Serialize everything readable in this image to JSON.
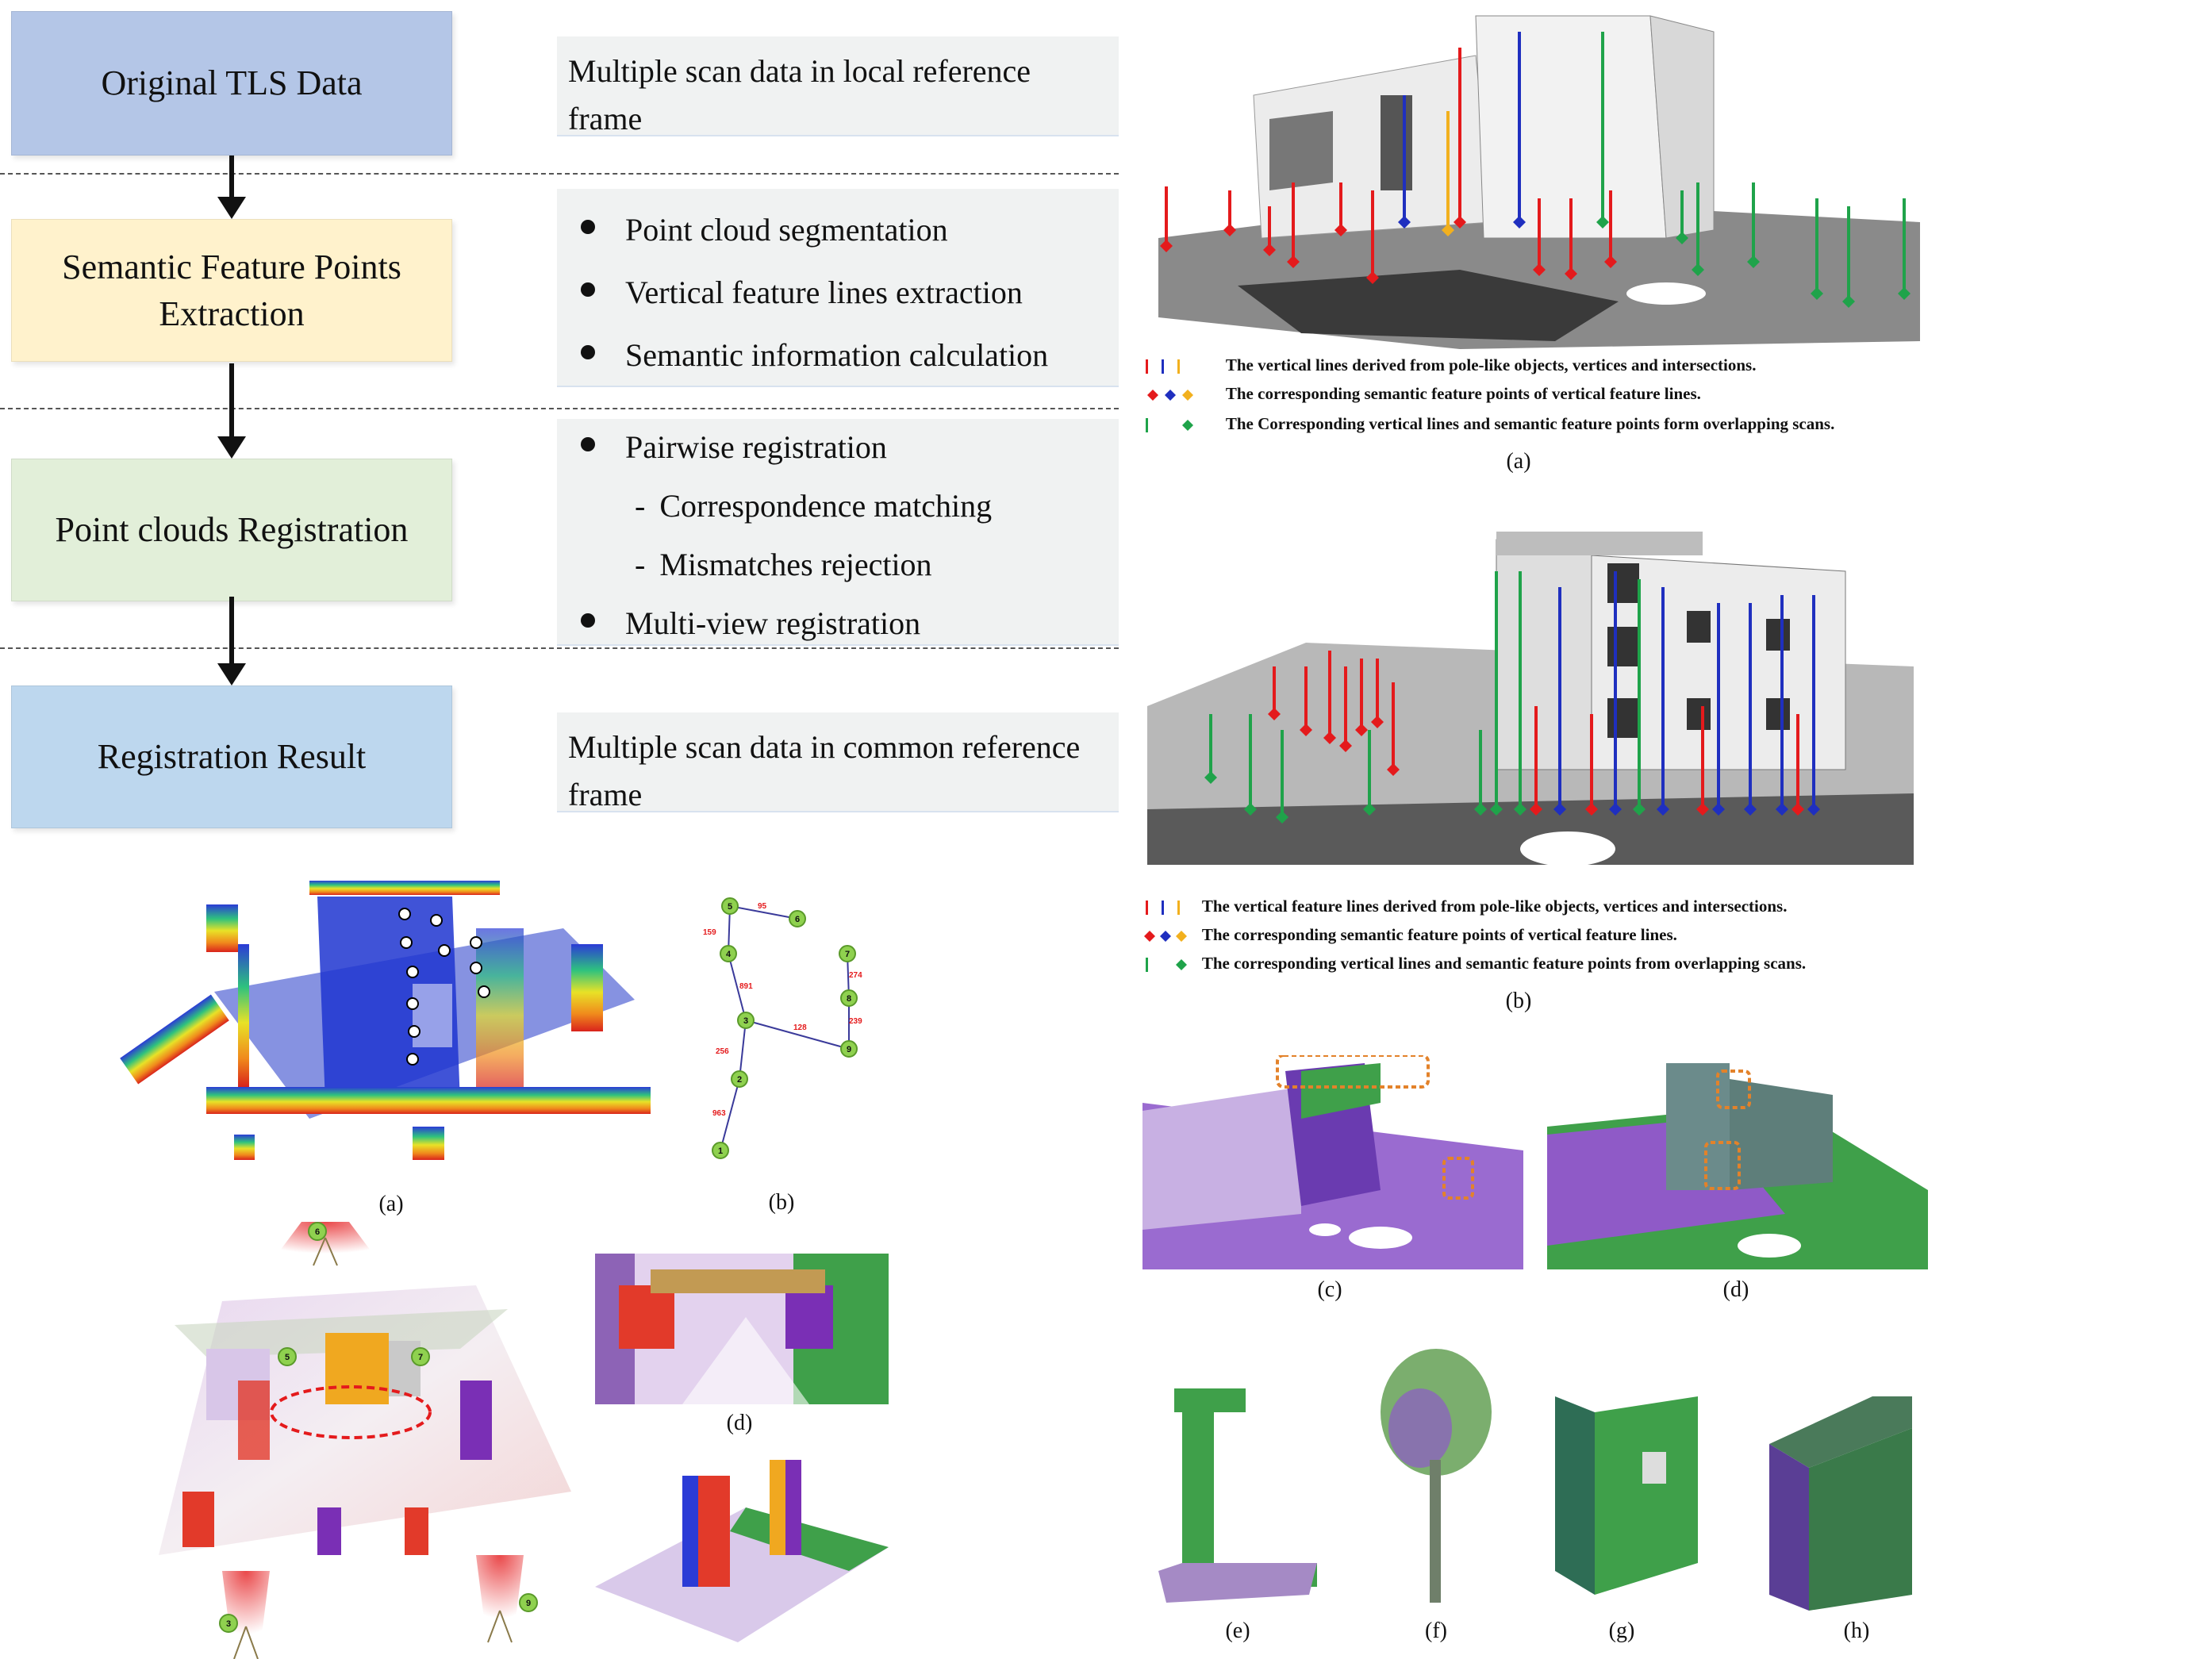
{
  "flowchart": {
    "stages": [
      "Original TLS Data",
      "Semantic Feature Points Extraction",
      "Point clouds Registration",
      "Registration Result"
    ],
    "desc1": "Multiple scan data in local reference frame",
    "desc2": [
      "Point cloud segmentation",
      "Vertical feature lines extraction",
      "Semantic information calculation"
    ],
    "desc3": {
      "b1": "Pairwise registration",
      "s1": "Correspondence matching",
      "s2": "Mismatches rejection",
      "b2": "Multi-view registration"
    },
    "desc4": "Multiple scan data in common reference frame",
    "sub_dash": "-"
  },
  "left_figure": {
    "captions": {
      "a": "(a)",
      "b": "(b)",
      "d": "(d)"
    },
    "graph_nodes": [
      "1",
      "2",
      "3",
      "4",
      "5",
      "6",
      "7",
      "8",
      "9"
    ],
    "graph_edge_labels": [
      "95",
      "159",
      "891",
      "274",
      "239",
      "128",
      "256",
      "963"
    ],
    "scanner_labels": [
      "6",
      "5",
      "7",
      "3",
      "9"
    ]
  },
  "right_figure": {
    "legend_a": [
      "The  vertical lines derived from pole-like objects, vertices and intersections.",
      "The corresponding semantic feature points of vertical feature lines.",
      "The Corresponding vertical lines and semantic feature points form overlapping scans."
    ],
    "legend_b": [
      "The vertical feature lines derived from pole-like objects, vertices and intersections.",
      "The corresponding semantic feature points of vertical  feature lines.",
      "The corresponding vertical  lines and semantic feature points from overlapping scans."
    ],
    "captions": {
      "a": "(a)",
      "b": "(b)",
      "c": "(c)",
      "d": "(d)",
      "e": "(e)",
      "f": "(f)",
      "g": "(g)",
      "h": "(h)"
    },
    "colors": {
      "red": "#e41a1c",
      "blue": "#1f2fbf",
      "yellow": "#f2b01e",
      "green": "#1fa34a",
      "purple": "#7a2fb5"
    }
  }
}
